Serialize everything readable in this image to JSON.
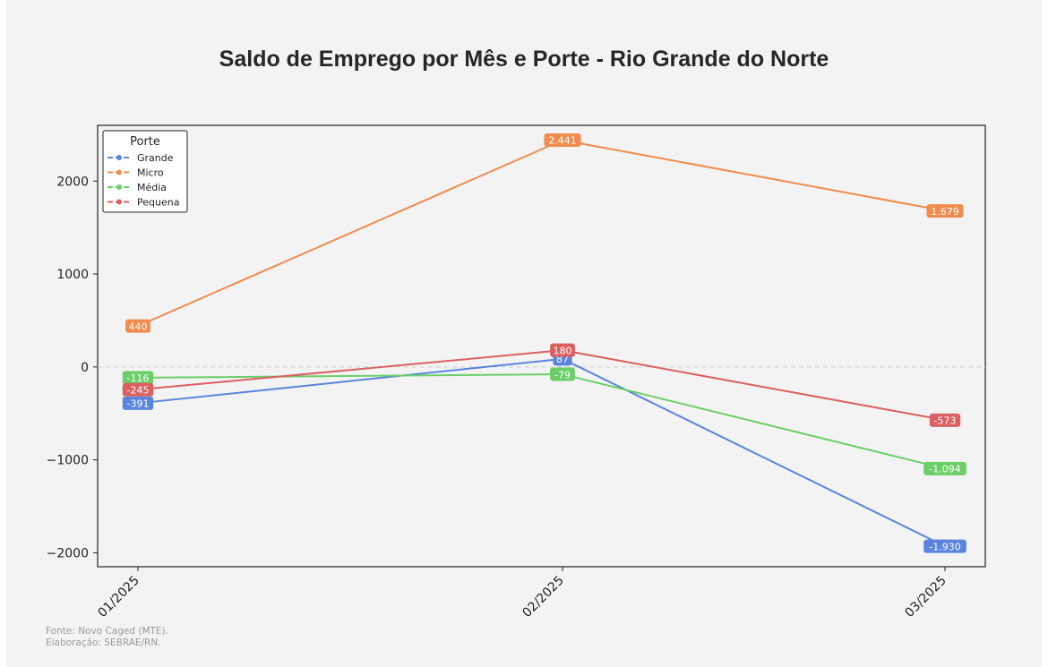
{
  "chart_data": {
    "type": "line",
    "title": "Saldo de Emprego por Mês e Porte - Rio Grande do Norte",
    "xlabel": "",
    "ylabel": "",
    "categories": [
      "01/2025",
      "02/2025",
      "03/2025"
    ],
    "y_ticks": [
      -2000,
      -1000,
      0,
      1000,
      2000
    ],
    "y_tick_labels": [
      "−2000",
      "−1000",
      "0",
      "1000",
      "2000"
    ],
    "ylim": [
      -2150,
      2600
    ],
    "grid": false,
    "zero_line": true,
    "legend": {
      "title": "Porte",
      "position": "top-left"
    },
    "series": [
      {
        "name": "Grande",
        "color": "#5b84dd",
        "values": [
          -391,
          87,
          -1930
        ],
        "labels": [
          "-391",
          "87",
          "-1.930"
        ]
      },
      {
        "name": "Micro",
        "color": "#ef8c4e",
        "values": [
          440,
          2441,
          1679
        ],
        "labels": [
          "440",
          "2.441",
          "1.679"
        ]
      },
      {
        "name": "Média",
        "color": "#6bce68",
        "values": [
          -116,
          -79,
          -1094
        ],
        "labels": [
          "-116",
          "-79",
          "-1.094"
        ]
      },
      {
        "name": "Pequena",
        "color": "#da6062",
        "values": [
          -245,
          180,
          -573
        ],
        "labels": [
          "-245",
          "180",
          "-573"
        ]
      }
    ]
  },
  "footer": {
    "source": "Fonte: Novo Caged (MTE).",
    "credit": "Elaboração: SEBRAE/RN."
  }
}
